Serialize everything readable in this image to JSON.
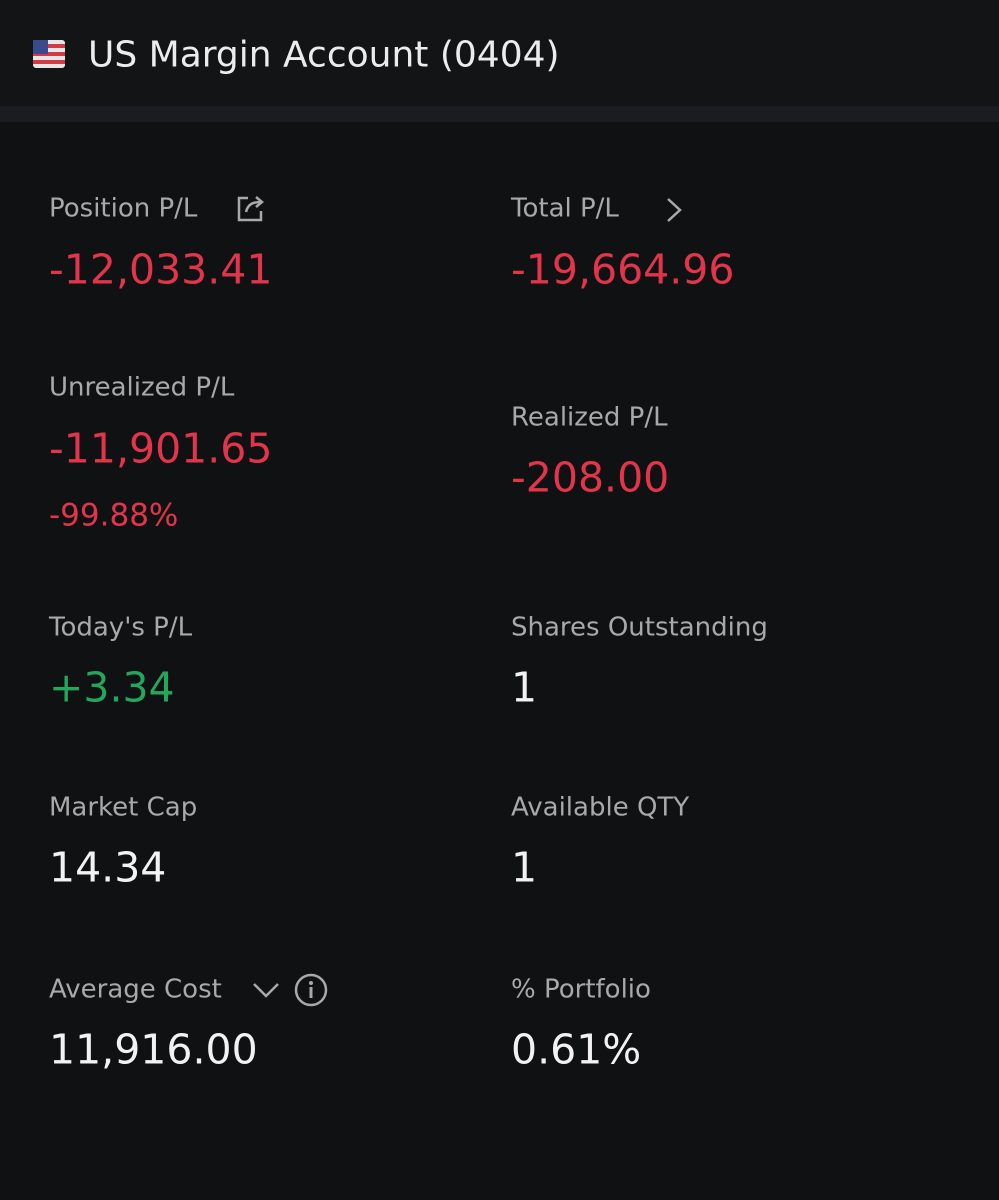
{
  "header": {
    "title": "US Margin Account (0404)"
  },
  "fields": [
    {
      "label": "Position P/L",
      "value": "-12,033.41"
    },
    {
      "label": "Total P/L",
      "value": "-19,664.96"
    },
    {
      "label": "Unrealized P/L",
      "value": "-11,901.65",
      "percent": "-99.88%"
    },
    {
      "label": "Realized P/L",
      "value": "-208.00"
    },
    {
      "label": "Today's P/L",
      "value": "+3.34"
    },
    {
      "label": "Shares Outstanding",
      "value": "1"
    },
    {
      "label": "Market Cap",
      "value": "14.34"
    },
    {
      "label": "Available QTY",
      "value": "1"
    },
    {
      "label": "Average Cost",
      "value": "11,916.00"
    },
    {
      "label": "% Portfolio",
      "value": "0.61%"
    }
  ]
}
